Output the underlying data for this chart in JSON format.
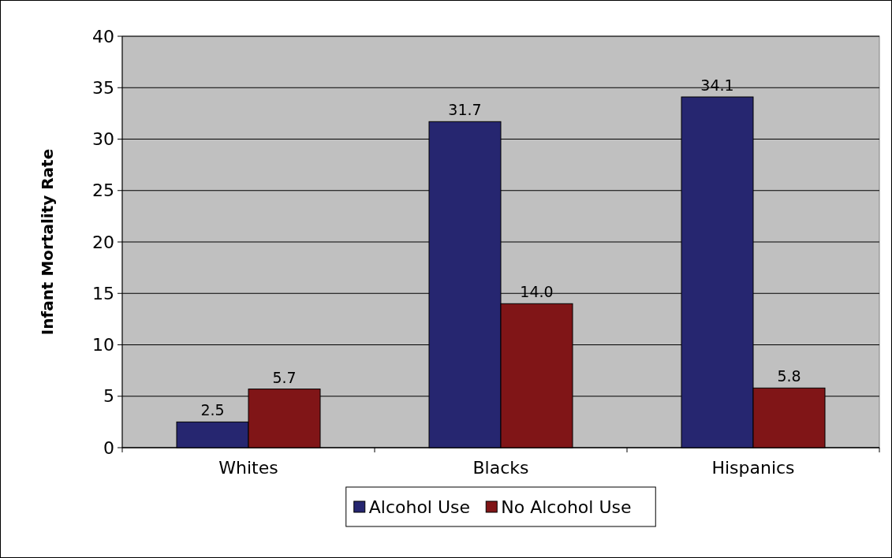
{
  "chart_data": {
    "type": "bar",
    "ylabel": "Infant Mortality Rate",
    "categories": [
      "Whites",
      "Blacks",
      "Hispanics"
    ],
    "series": [
      {
        "name": "Alcohol Use",
        "color": "#262670",
        "values": [
          2.5,
          31.7,
          34.1
        ],
        "value_labels": [
          "2.5",
          "31.7",
          "34.1"
        ]
      },
      {
        "name": "No Alcohol Use",
        "color": "#801517",
        "values": [
          5.7,
          14.0,
          5.8
        ],
        "value_labels": [
          "5.7",
          "14.0",
          "5.8"
        ]
      }
    ],
    "ylim": [
      0,
      40
    ],
    "yticks": [
      0,
      5,
      10,
      15,
      20,
      25,
      30,
      35,
      40
    ],
    "grid": "y",
    "legend": "bottom"
  }
}
